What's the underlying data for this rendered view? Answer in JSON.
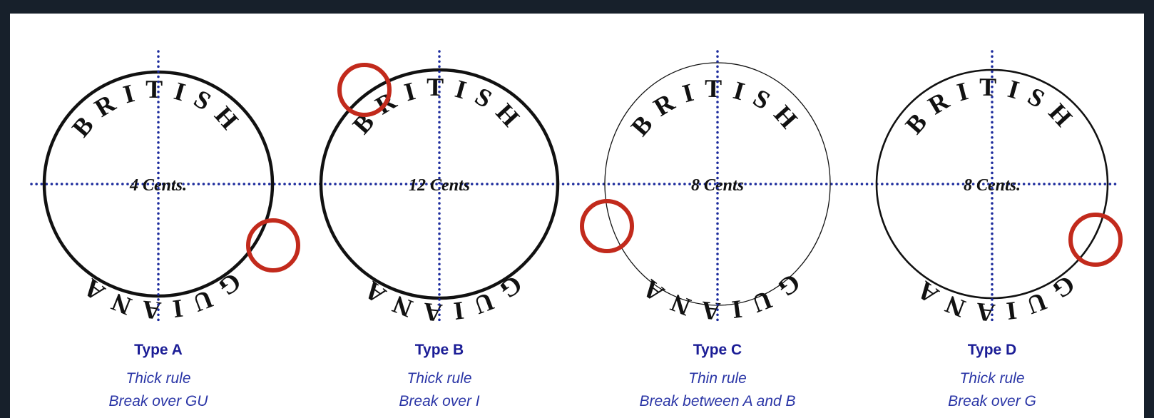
{
  "panels": [
    {
      "title": "Type A",
      "lines": [
        "Thick rule",
        "Break over GU"
      ],
      "stamp": {
        "top": "BRITISH",
        "value": "4 Cents.",
        "bottom": "GUIANA"
      }
    },
    {
      "title": "Type B",
      "lines": [
        "Thick rule",
        "Break over I"
      ],
      "stamp": {
        "top": "BRITISH",
        "value": "12 Cents",
        "bottom": "GUIANA"
      }
    },
    {
      "title": "Type C",
      "lines": [
        "Thin rule",
        "Break between A and B"
      ],
      "stamp": {
        "top": "BRITISH",
        "value": "8 Cents",
        "bottom": "GUIANA"
      }
    },
    {
      "title": "Type D",
      "lines": [
        "Thick rule",
        "Break over G"
      ],
      "stamp": {
        "top": "BRITISH",
        "value": "8 Cents.",
        "bottom": "GUIANA"
      }
    }
  ]
}
